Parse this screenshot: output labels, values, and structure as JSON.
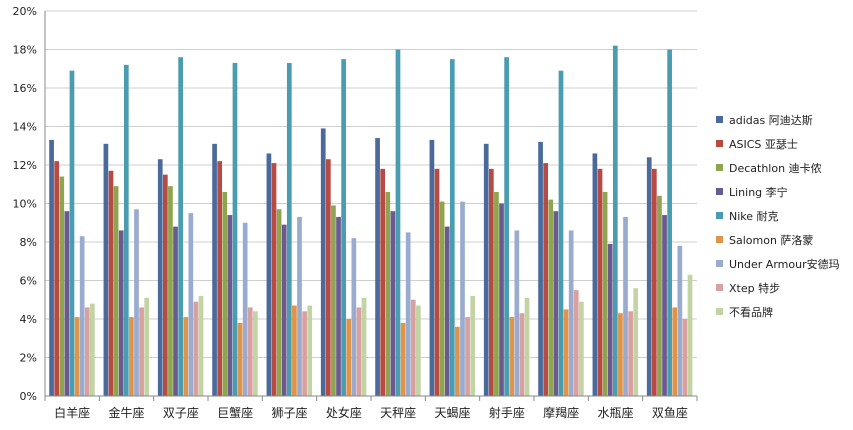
{
  "chart_data": {
    "type": "bar",
    "title": "",
    "xlabel": "",
    "ylabel": "",
    "ylim": [
      0,
      20
    ],
    "y_ticks": [
      "0%",
      "2%",
      "4%",
      "6%",
      "8%",
      "10%",
      "12%",
      "14%",
      "16%",
      "18%",
      "20%"
    ],
    "grid": true,
    "legend_position": "right",
    "categories": [
      "白羊座",
      "金牛座",
      "双子座",
      "巨蟹座",
      "狮子座",
      "处女座",
      "天秤座",
      "天蝎座",
      "射手座",
      "摩羯座",
      "水瓶座",
      "双鱼座"
    ],
    "series": [
      {
        "name": "adidas 阿迪达斯",
        "color": "#4a6a9b",
        "values": [
          13.3,
          13.1,
          12.3,
          13.1,
          12.6,
          13.9,
          13.4,
          13.3,
          13.1,
          13.2,
          12.6,
          12.4
        ]
      },
      {
        "name": "ASICS 亚瑟士",
        "color": "#b84a44",
        "values": [
          12.2,
          11.7,
          11.5,
          12.2,
          12.1,
          12.3,
          11.8,
          11.8,
          11.8,
          12.1,
          11.8,
          11.8
        ]
      },
      {
        "name": "Decathlon 迪卡侬",
        "color": "#8ea44e",
        "values": [
          11.4,
          10.9,
          10.9,
          10.6,
          9.7,
          9.9,
          10.6,
          10.1,
          10.6,
          10.2,
          10.6,
          10.4
        ]
      },
      {
        "name": "Lining 李宁",
        "color": "#6a5a8f",
        "values": [
          9.6,
          8.6,
          8.8,
          9.4,
          8.9,
          9.3,
          9.6,
          8.8,
          10.0,
          9.6,
          7.9,
          9.4
        ]
      },
      {
        "name": "Nike 耐克",
        "color": "#4a9db0",
        "values": [
          16.9,
          17.2,
          17.6,
          17.3,
          17.3,
          17.5,
          18.0,
          17.5,
          17.6,
          16.9,
          18.2,
          18.0
        ]
      },
      {
        "name": "Salomon 萨洛蒙",
        "color": "#e0944a",
        "values": [
          4.1,
          4.1,
          4.1,
          3.8,
          4.7,
          4.0,
          3.8,
          3.6,
          4.1,
          4.5,
          4.3,
          4.6
        ]
      },
      {
        "name": "Under Armour安德玛",
        "color": "#9aabd0",
        "values": [
          8.3,
          9.7,
          9.5,
          9.0,
          9.3,
          8.2,
          8.5,
          10.1,
          8.6,
          8.6,
          9.3,
          7.8
        ]
      },
      {
        "name": "Xtep 特步",
        "color": "#d9a0a0",
        "values": [
          4.6,
          4.6,
          4.9,
          4.6,
          4.4,
          4.6,
          5.0,
          4.1,
          4.3,
          5.5,
          4.4,
          4.0
        ]
      },
      {
        "name": "不看品牌",
        "color": "#c2d3a4",
        "values": [
          4.8,
          5.1,
          5.2,
          4.4,
          4.7,
          5.1,
          4.7,
          5.2,
          5.1,
          4.9,
          5.6,
          6.3
        ]
      }
    ]
  }
}
